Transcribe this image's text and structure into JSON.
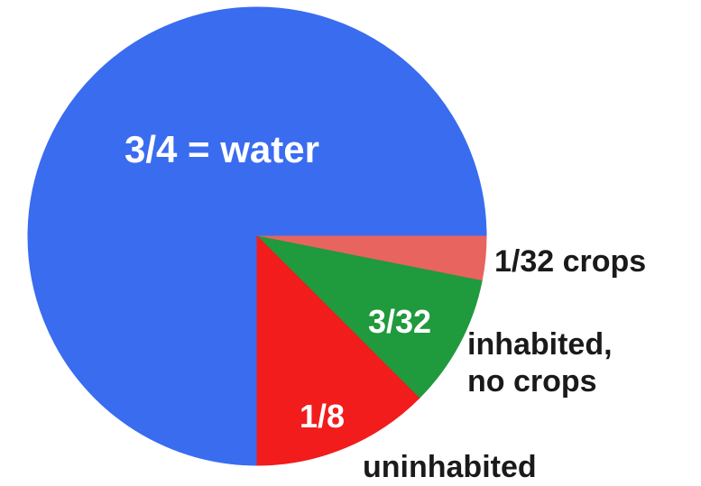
{
  "chart_data": {
    "type": "pie",
    "categories": [
      "3/4 = water",
      "1/32 crops",
      "inhabited,\nno crops",
      "uninhabited"
    ],
    "values": [
      0.75,
      0.03125,
      0.09375,
      0.125
    ],
    "value_labels": [
      null,
      null,
      "3/32",
      "1/8"
    ],
    "colors": [
      "#3a6cf0",
      "#e8645e",
      "#1f9a3c",
      "#f21c1c"
    ]
  }
}
